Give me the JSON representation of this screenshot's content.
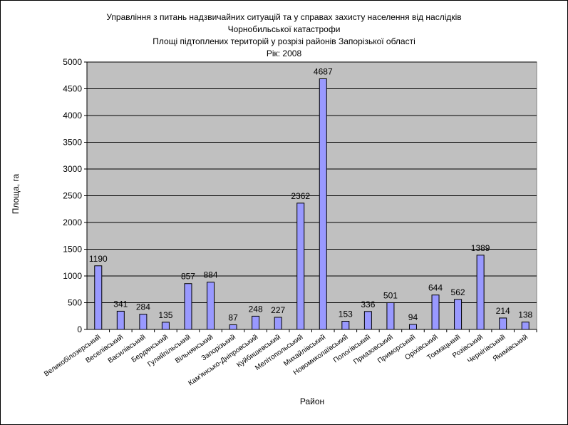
{
  "chart_data": {
    "type": "bar",
    "title_lines": [
      "Управління з питань надзвичайних ситуацій та у справах захисту населення від наслідків",
      "Чорнобильської катастрофи",
      "Площі підтоплених територій у розрізі районів Запорізької області",
      "Рік: 2008"
    ],
    "xlabel": "Район",
    "ylabel": "Площа, га",
    "ylim": [
      0,
      5000
    ],
    "yticks": [
      0,
      500,
      1000,
      1500,
      2000,
      2500,
      3000,
      3500,
      4000,
      4500,
      5000
    ],
    "grid": true,
    "categories": [
      "Великобілозерський",
      "Веселівський",
      "Василівський",
      "Бердянський",
      "Гуляйпільський",
      "Вільнянський",
      "Запорізький",
      "Кам'янсько-Дніпровський",
      "Куйбишевський",
      "Мелітопольський",
      "Михайлівський",
      "Новомиколаївський",
      "Пологівський",
      "Приазовський",
      "Приморський",
      "Оріхівський",
      "Токмацький",
      "Розівський",
      "Чернігівський",
      "Якимівський"
    ],
    "values": [
      1190,
      341,
      284,
      135,
      857,
      884,
      87,
      248,
      227,
      2362,
      4687,
      153,
      336,
      501,
      94,
      644,
      562,
      1389,
      214,
      138
    ],
    "colors": {
      "bar": "#9999ff",
      "plot_bg": "#c0c0c0",
      "grid": "#000000"
    }
  }
}
